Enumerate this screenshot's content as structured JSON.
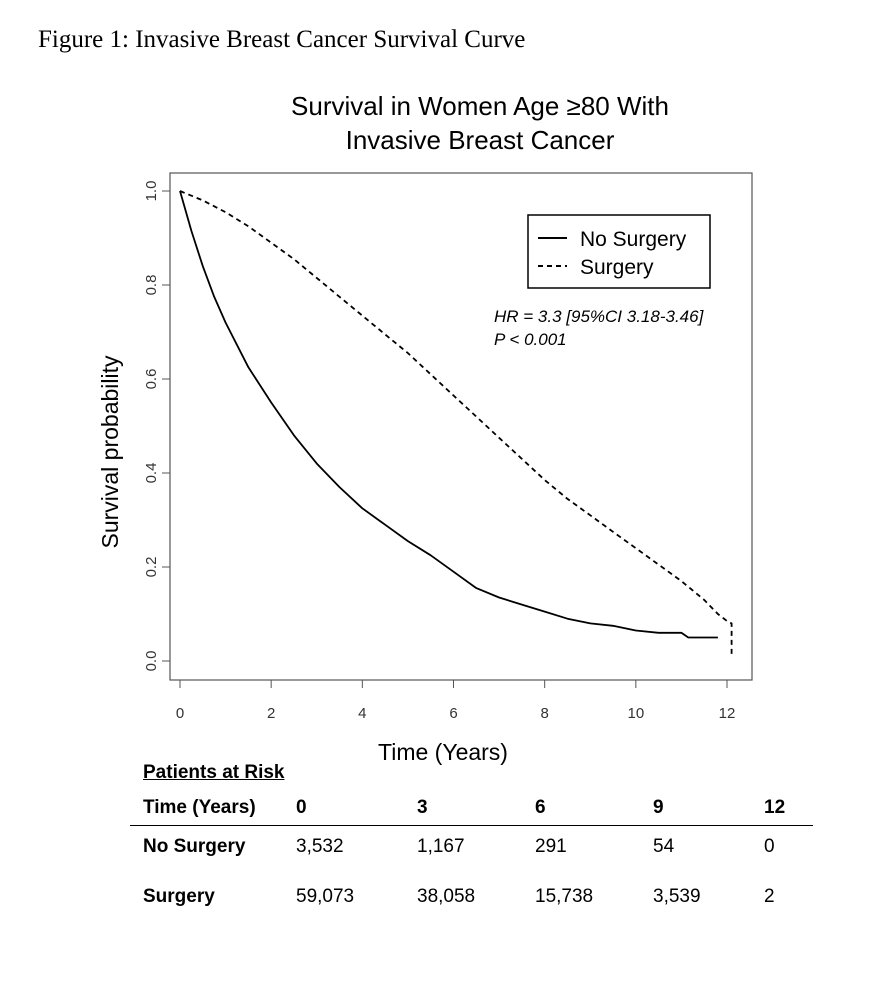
{
  "figure_caption": "Figure 1: Invasive Breast Cancer Survival Curve",
  "chart_data": {
    "type": "line",
    "title_lines": [
      "Survival in Women Age ≥80 With",
      "Invasive Breast Cancer"
    ],
    "xlabel": "Time (Years)",
    "ylabel": "Survival probability",
    "xlim": [
      0,
      12
    ],
    "ylim": [
      0,
      1
    ],
    "x_ticks": [
      0,
      2,
      4,
      6,
      8,
      10,
      12
    ],
    "y_ticks": [
      "0.0",
      "0.2",
      "0.4",
      "0.6",
      "0.8",
      "1.0"
    ],
    "grid": false,
    "legend_position": "top-right",
    "series": [
      {
        "name": "No Surgery",
        "style": "solid",
        "x": [
          0,
          0.25,
          0.5,
          0.75,
          1,
          1.5,
          2,
          2.5,
          3,
          3.5,
          4,
          4.5,
          5,
          5.5,
          6,
          6.5,
          7,
          7.5,
          8,
          8.5,
          9,
          9.5,
          10,
          10.5,
          11,
          11.15,
          11.5,
          11.8
        ],
        "y": [
          1.0,
          0.915,
          0.84,
          0.775,
          0.72,
          0.625,
          0.55,
          0.48,
          0.42,
          0.37,
          0.325,
          0.29,
          0.255,
          0.225,
          0.19,
          0.155,
          0.135,
          0.12,
          0.105,
          0.09,
          0.08,
          0.075,
          0.065,
          0.06,
          0.06,
          0.05,
          0.05,
          0.05
        ]
      },
      {
        "name": "Surgery",
        "style": "dashed",
        "x": [
          0,
          0.5,
          1,
          1.5,
          2,
          2.5,
          3,
          3.5,
          4,
          4.5,
          5,
          5.5,
          6,
          6.5,
          7,
          7.5,
          8,
          8.5,
          9,
          9.5,
          10,
          10.5,
          11,
          11.5,
          11.8,
          12.0,
          12.1,
          12.1
        ],
        "y": [
          1.0,
          0.98,
          0.955,
          0.925,
          0.89,
          0.855,
          0.815,
          0.775,
          0.735,
          0.695,
          0.655,
          0.61,
          0.565,
          0.52,
          0.475,
          0.43,
          0.385,
          0.345,
          0.31,
          0.275,
          0.24,
          0.205,
          0.17,
          0.13,
          0.1,
          0.085,
          0.08,
          0.01
        ]
      }
    ],
    "annotation_lines": [
      "HR = 3.3 [95%CI 3.18-3.46]",
      "P < 0.001"
    ]
  },
  "risk_table": {
    "title": "Patients at Risk",
    "header_label": "Time (Years)",
    "times": [
      "0",
      "3",
      "6",
      "9",
      "12"
    ],
    "rows": [
      {
        "label": "No Surgery",
        "values": [
          "3,532",
          "1,167",
          "291",
          "54",
          "0"
        ]
      },
      {
        "label": "Surgery",
        "values": [
          "59,073",
          "38,058",
          "15,738",
          "3,539",
          "2"
        ]
      }
    ]
  }
}
